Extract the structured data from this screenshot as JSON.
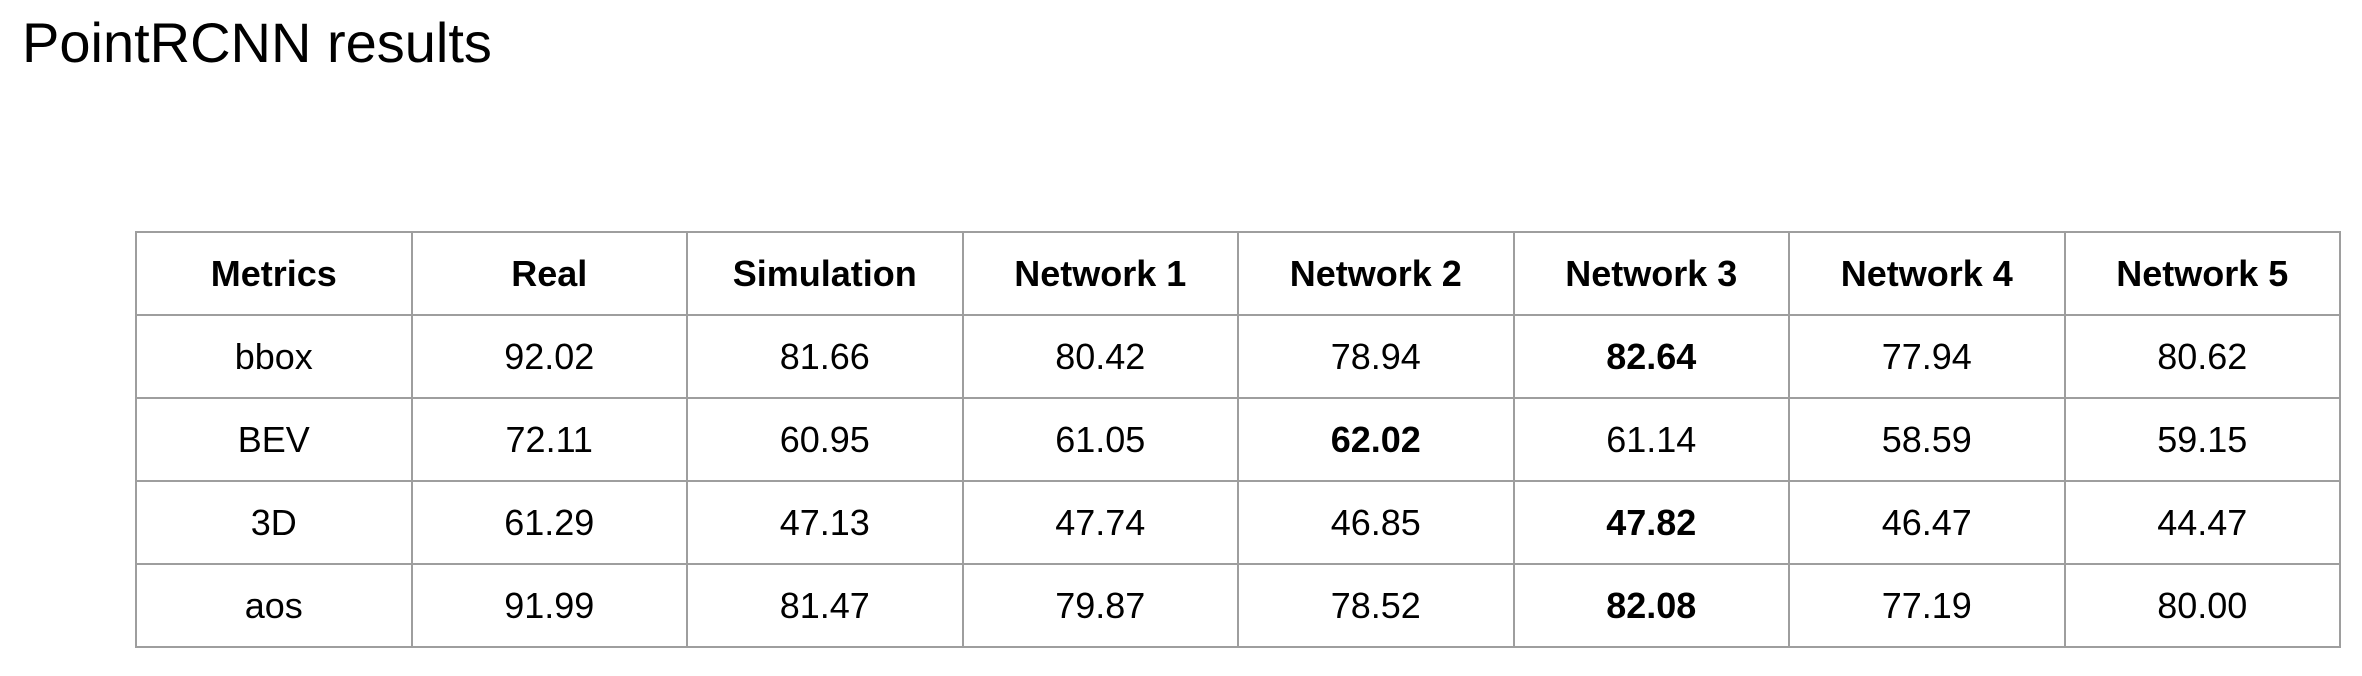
{
  "title": "PointRCNN results",
  "table": {
    "headers": [
      "Metrics",
      "Real",
      "Simulation",
      "Network 1",
      "Network 2",
      "Network 3",
      "Network 4",
      "Network 5"
    ],
    "rows": [
      {
        "metric": "bbox",
        "values": [
          "92.02",
          "81.66",
          "80.42",
          "78.94",
          "82.64",
          "77.94",
          "80.62"
        ],
        "best_index": 4
      },
      {
        "metric": "BEV",
        "values": [
          "72.11",
          "60.95",
          "61.05",
          "62.02",
          "61.14",
          "58.59",
          "59.15"
        ],
        "best_index": 3
      },
      {
        "metric": "3D",
        "values": [
          "61.29",
          "47.13",
          "47.74",
          "46.85",
          "47.82",
          "46.47",
          "44.47"
        ],
        "best_index": 4
      },
      {
        "metric": "aos",
        "values": [
          "91.99",
          "81.47",
          "79.87",
          "78.52",
          "82.08",
          "77.19",
          "80.00"
        ],
        "best_index": 4
      }
    ]
  }
}
